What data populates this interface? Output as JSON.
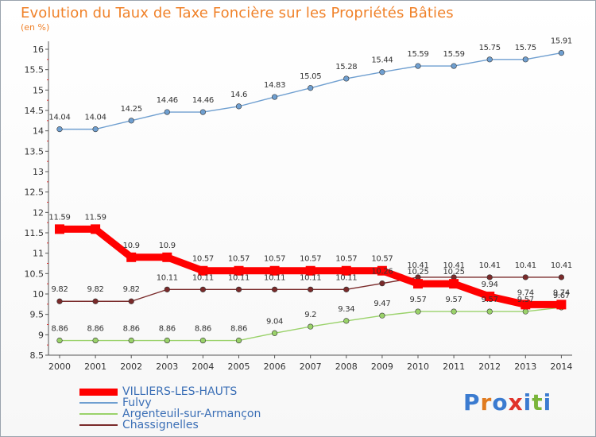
{
  "header": {
    "title": "Evolution du Taux de Taxe Foncière sur les Propriétés Bâties",
    "unit": "(en %)"
  },
  "brand": {
    "text": "Proxiti",
    "letter_colors": [
      "#3b7bd0",
      "#e07b1f",
      "#3b7bd0",
      "#e0322a",
      "#3b7bd0",
      "#7ab53a",
      "#3b7bd0"
    ]
  },
  "chart_data": {
    "type": "line",
    "title": "Evolution du Taux de Taxe Foncière sur les Propriétés Bâties",
    "ylabel": "(en %)",
    "xlabel": "",
    "x": [
      "2000",
      "2001",
      "2002",
      "2003",
      "2004",
      "2005",
      "2006",
      "2007",
      "2008",
      "2009",
      "2010",
      "2011",
      "2012",
      "2013",
      "2014"
    ],
    "ylim": [
      8.5,
      16
    ],
    "yticks": [
      "8.5",
      "9",
      "9.5",
      "10",
      "10.5",
      "11",
      "11.5",
      "12",
      "12.5",
      "13",
      "13.5",
      "14",
      "14.5",
      "15",
      "15.5",
      "16"
    ],
    "grid": false,
    "legend_position": "bottom-left",
    "series": [
      {
        "name": "VILLIERS-LES-HAUTS",
        "color": "#ff0000",
        "values": [
          11.59,
          11.59,
          10.9,
          10.9,
          10.57,
          10.57,
          10.57,
          10.57,
          10.57,
          10.57,
          10.25,
          10.25,
          9.94,
          9.74,
          9.74
        ],
        "labels": [
          "11.59",
          "11.59",
          "10.9",
          "10.9",
          "10.57",
          "10.57",
          "10.57",
          "10.57",
          "10.57",
          "10.57",
          "10.25",
          "10.25",
          "9.94",
          "9.74",
          "9.74"
        ]
      },
      {
        "name": "Fulvy",
        "color": "#6f9fd0",
        "values": [
          14.04,
          14.04,
          14.25,
          14.46,
          14.46,
          14.6,
          14.83,
          15.05,
          15.28,
          15.44,
          15.59,
          15.59,
          15.75,
          15.75,
          15.91
        ],
        "labels": [
          "14.04",
          "14.04",
          "14.25",
          "14.46",
          "14.46",
          "14.6",
          "14.83",
          "15.05",
          "15.28",
          "15.44",
          "15.59",
          "15.59",
          "15.75",
          "15.75",
          "15.91"
        ]
      },
      {
        "name": "Argenteuil-sur-Armançon",
        "color": "#9ad26a",
        "values": [
          8.86,
          8.86,
          8.86,
          8.86,
          8.86,
          8.86,
          9.04,
          9.2,
          9.34,
          9.47,
          9.57,
          9.57,
          9.57,
          9.57,
          9.67
        ],
        "labels": [
          "8.86",
          "8.86",
          "8.86",
          "8.86",
          "8.86",
          "8.86",
          "9.04",
          "9.2",
          "9.34",
          "9.47",
          "9.57",
          "9.57",
          "9.57",
          "9.57",
          "9.67"
        ]
      },
      {
        "name": "Chassignelles",
        "color": "#7a2a2a",
        "values": [
          9.82,
          9.82,
          9.82,
          10.11,
          10.11,
          10.11,
          10.11,
          10.11,
          10.11,
          10.26,
          10.41,
          10.41,
          10.41,
          10.41,
          10.41
        ],
        "labels": [
          "9.82",
          "9.82",
          "9.82",
          "10.11",
          "10.11",
          "10.11",
          "10.11",
          "10.11",
          "10.11",
          "10.26",
          "10.41",
          "10.41",
          "10.41",
          "10.41",
          "10.41"
        ]
      }
    ]
  }
}
